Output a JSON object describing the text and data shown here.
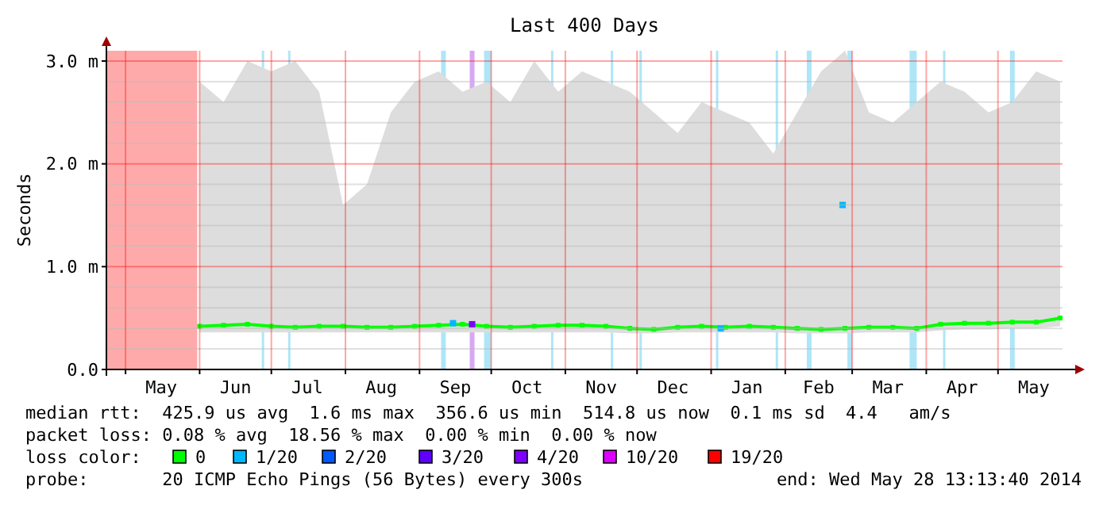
{
  "chart_data": {
    "type": "line",
    "title": "Last 400 Days",
    "ylabel": "Seconds",
    "x": [
      "2013-06-01",
      "2013-06-11",
      "2013-06-21",
      "2013-07-01",
      "2013-07-11",
      "2013-07-21",
      "2013-07-31",
      "2013-08-10",
      "2013-08-20",
      "2013-08-30",
      "2013-09-09",
      "2013-09-19",
      "2013-09-29",
      "2013-10-09",
      "2013-10-19",
      "2013-10-29",
      "2013-11-08",
      "2013-11-18",
      "2013-11-28",
      "2013-12-08",
      "2013-12-18",
      "2013-12-28",
      "2014-01-07",
      "2014-01-17",
      "2014-01-27",
      "2014-02-06",
      "2014-02-16",
      "2014-02-26",
      "2014-03-08",
      "2014-03-18",
      "2014-03-28",
      "2014-04-07",
      "2014-04-17",
      "2014-04-27",
      "2014-05-07",
      "2014-05-17",
      "2014-05-27"
    ],
    "series": [
      {
        "name": "0",
        "color": "#00ff00",
        "values": [
          0.42,
          0.43,
          0.44,
          0.42,
          0.41,
          0.42,
          0.42,
          0.41,
          0.41,
          0.42,
          0.43,
          0.44,
          0.42,
          0.41,
          0.42,
          0.43,
          0.43,
          0.42,
          0.4,
          0.39,
          0.41,
          0.42,
          0.41,
          0.42,
          0.41,
          0.4,
          0.39,
          0.4,
          0.41,
          0.41,
          0.4,
          0.44,
          0.45,
          0.45,
          0.46,
          0.46,
          0.5
        ],
        "lower": [
          0.36,
          0.36,
          0.36,
          0.36,
          0.36,
          0.36,
          0.36,
          0.36,
          0.36,
          0.36,
          0.36,
          0.36,
          0.36,
          0.36,
          0.36,
          0.36,
          0.36,
          0.36,
          0.35,
          0.35,
          0.36,
          0.36,
          0.36,
          0.36,
          0.36,
          0.35,
          0.35,
          0.35,
          0.36,
          0.36,
          0.36,
          0.38,
          0.39,
          0.39,
          0.4,
          0.4,
          0.42
        ],
        "upper": [
          2.8,
          2.6,
          3.0,
          2.9,
          3.0,
          2.7,
          1.6,
          1.8,
          2.5,
          2.8,
          2.9,
          2.7,
          2.8,
          2.6,
          3.0,
          2.7,
          2.9,
          2.8,
          2.7,
          2.5,
          2.3,
          2.6,
          2.5,
          2.4,
          2.1,
          2.5,
          2.9,
          3.1,
          2.5,
          2.4,
          2.6,
          2.8,
          2.7,
          2.5,
          2.6,
          2.9,
          2.8
        ]
      },
      {
        "name": "1/20",
        "type": "scatter",
        "color": "#00b8ff",
        "x": [
          "2013-09-15",
          "2014-01-05",
          "2014-02-25"
        ],
        "values": [
          0.45,
          0.4,
          1.6
        ]
      },
      {
        "name": "2/20",
        "type": "scatter",
        "color": "#0059ff",
        "values": [
          null,
          null,
          null,
          null,
          null,
          null,
          null,
          null,
          null,
          null,
          null,
          null,
          null,
          null,
          null,
          null,
          null,
          null,
          null,
          null,
          null,
          null,
          null,
          null,
          null,
          null,
          null,
          null,
          null,
          null,
          null,
          null,
          null,
          null,
          null,
          null,
          null
        ]
      },
      {
        "name": "3/20",
        "type": "scatter",
        "color": "#5e00ff",
        "values": [
          null,
          null,
          null,
          null,
          null,
          null,
          null,
          null,
          null,
          null,
          null,
          null,
          null,
          null,
          null,
          null,
          null,
          null,
          null,
          null,
          null,
          null,
          null,
          null,
          null,
          null,
          null,
          null,
          null,
          null,
          null,
          null,
          null,
          null,
          null,
          null,
          null
        ]
      },
      {
        "name": "4/20",
        "type": "scatter",
        "color": "#7e00ff",
        "x": [
          "2013-09-23"
        ],
        "values": [
          0.44
        ]
      },
      {
        "name": "10/20",
        "type": "scatter",
        "color": "#dd00ff",
        "values": [
          null,
          null,
          null,
          null,
          null,
          null,
          null,
          null,
          null,
          null,
          null,
          null,
          null,
          null,
          null,
          null,
          null,
          null,
          null,
          null,
          null,
          null,
          null,
          null,
          null,
          null,
          null,
          null,
          null,
          null,
          null,
          null,
          null,
          null,
          null,
          null,
          null
        ]
      },
      {
        "name": "19/20",
        "type": "scatter",
        "color": "#ff0000",
        "values": [
          null,
          null,
          null,
          null,
          null,
          null,
          null,
          null,
          null,
          null,
          null,
          null,
          null,
          null,
          null,
          null,
          null,
          null,
          null,
          null,
          null,
          null,
          null,
          null,
          null,
          null,
          null,
          null,
          null,
          null,
          null,
          null,
          null,
          null,
          null,
          null,
          null
        ]
      }
    ],
    "xlim": [
      "2013-04-23",
      "2014-05-28"
    ],
    "xticks": [
      {
        "value": "2013-05-01",
        "label": null
      },
      {
        "value": "2013-05-16",
        "label": "May"
      },
      {
        "value": "2013-06-01",
        "label": null
      },
      {
        "value": "2013-06-16",
        "label": "Jun"
      },
      {
        "value": "2013-07-01",
        "label": null
      },
      {
        "value": "2013-07-16",
        "label": "Jul"
      },
      {
        "value": "2013-08-01",
        "label": null
      },
      {
        "value": "2013-08-16",
        "label": "Aug"
      },
      {
        "value": "2013-09-01",
        "label": null
      },
      {
        "value": "2013-09-16",
        "label": "Sep"
      },
      {
        "value": "2013-10-01",
        "label": null
      },
      {
        "value": "2013-10-16",
        "label": "Oct"
      },
      {
        "value": "2013-11-01",
        "label": null
      },
      {
        "value": "2013-11-16",
        "label": "Nov"
      },
      {
        "value": "2013-12-01",
        "label": null
      },
      {
        "value": "2013-12-16",
        "label": "Dec"
      },
      {
        "value": "2014-01-01",
        "label": null
      },
      {
        "value": "2014-01-16",
        "label": "Jan"
      },
      {
        "value": "2014-02-01",
        "label": null
      },
      {
        "value": "2014-02-15",
        "label": "Feb"
      },
      {
        "value": "2014-03-01",
        "label": null
      },
      {
        "value": "2014-03-16",
        "label": "Mar"
      },
      {
        "value": "2014-04-01",
        "label": null
      },
      {
        "value": "2014-04-16",
        "label": "Apr"
      },
      {
        "value": "2014-05-01",
        "label": null
      },
      {
        "value": "2014-05-16",
        "label": "May"
      }
    ],
    "ylim": [
      0,
      3.1
    ],
    "yticks": [
      {
        "value": 0,
        "label": "0.0"
      },
      {
        "value": 0.2,
        "label": null
      },
      {
        "value": 0.4,
        "label": null
      },
      {
        "value": 0.6,
        "label": null
      },
      {
        "value": 0.8,
        "label": null
      },
      {
        "value": 1,
        "label": "1.0 m"
      },
      {
        "value": 1.2,
        "label": null
      },
      {
        "value": 1.4,
        "label": null
      },
      {
        "value": 1.6,
        "label": null
      },
      {
        "value": 1.8,
        "label": null
      },
      {
        "value": 2,
        "label": "2.0 m"
      },
      {
        "value": 2.2,
        "label": null
      },
      {
        "value": 2.4,
        "label": null
      },
      {
        "value": 2.6,
        "label": null
      },
      {
        "value": 2.8,
        "label": null
      },
      {
        "value": 3,
        "label": "3.0 m"
      }
    ],
    "bands": [
      {
        "axis": "x",
        "from": "2013-04-23",
        "to": "2013-05-31",
        "color": "#ffaaaa"
      },
      {
        "axis": "x",
        "from": "2013-06-27",
        "to": "2013-06-28",
        "color": "#aee6f8"
      },
      {
        "axis": "x",
        "from": "2013-07-08",
        "to": "2013-07-09",
        "color": "#aee6f8"
      },
      {
        "axis": "x",
        "from": "2013-09-10",
        "to": "2013-09-12",
        "color": "#aee6f8"
      },
      {
        "axis": "x",
        "from": "2013-09-22",
        "to": "2013-09-24",
        "color": "#d8a8f4"
      },
      {
        "axis": "x",
        "from": "2013-09-28",
        "to": "2013-10-01",
        "color": "#aee6f8"
      },
      {
        "axis": "x",
        "from": "2013-10-26",
        "to": "2013-10-27",
        "color": "#aee6f8"
      },
      {
        "axis": "x",
        "from": "2013-11-20",
        "to": "2013-11-21",
        "color": "#aee6f8"
      },
      {
        "axis": "x",
        "from": "2013-12-02",
        "to": "2013-12-03",
        "color": "#aee6f8"
      },
      {
        "axis": "x",
        "from": "2014-01-03",
        "to": "2014-01-04",
        "color": "#aee6f8"
      },
      {
        "axis": "x",
        "from": "2014-01-28",
        "to": "2014-01-29",
        "color": "#aee6f8"
      },
      {
        "axis": "x",
        "from": "2014-02-10",
        "to": "2014-02-12",
        "color": "#aee6f8"
      },
      {
        "axis": "x",
        "from": "2014-02-27",
        "to": "2014-03-01",
        "color": "#aee6f8"
      },
      {
        "axis": "x",
        "from": "2014-03-25",
        "to": "2014-03-28",
        "color": "#aee6f8"
      },
      {
        "axis": "x",
        "from": "2014-04-08",
        "to": "2014-04-09",
        "color": "#aee6f8"
      },
      {
        "axis": "x",
        "from": "2014-05-06",
        "to": "2014-05-08",
        "color": "#aee6f8"
      }
    ],
    "grid": true,
    "marker": "square",
    "line_style": "solid",
    "legend": "bottom",
    "legend_title": "loss color:",
    "annotations": [
      "median rtt:  425.9 us avg  1.6 ms max  356.6 us min  514.8 us now  0.1 ms sd  4.4   am/s",
      "packet loss: 0.08 % avg  18.56 % max  0.00 % min  0.00 % now",
      "probe:       20 ICMP Echo Pings (56 Bytes) every 300s",
      "end: Wed May 28 13:13:40 2014"
    ]
  }
}
